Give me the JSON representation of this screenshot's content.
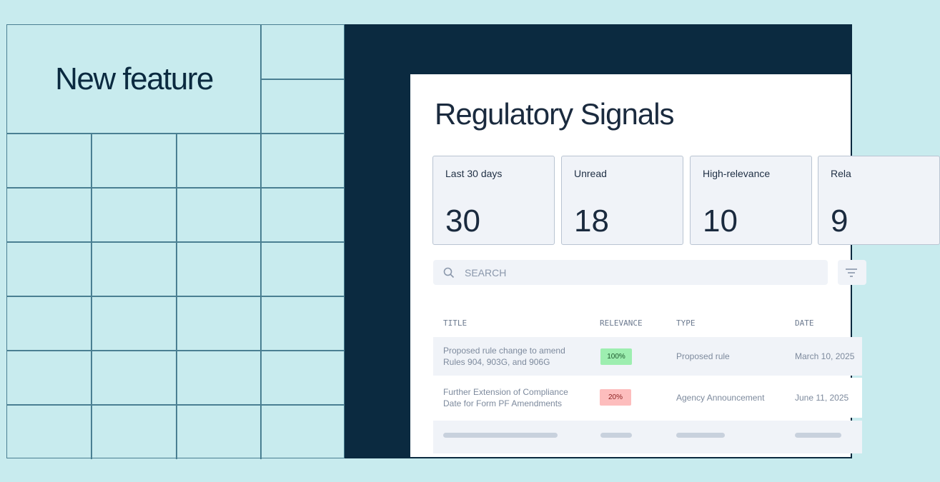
{
  "headline": "New feature",
  "app": {
    "title": "Regulatory Signals",
    "stats": [
      {
        "label": "Last 30 days",
        "value": "30"
      },
      {
        "label": "Unread",
        "value": "18"
      },
      {
        "label": "High-relevance",
        "value": "10"
      },
      {
        "label": "Rela",
        "value": "9"
      }
    ],
    "search": {
      "placeholder": "SEARCH"
    },
    "table": {
      "headers": [
        "TITLE",
        "RELEVANCE",
        "TYPE",
        "DATE"
      ],
      "rows": [
        {
          "title": "Proposed rule change to amend Rules 904, 903G, and 906G",
          "relevance": "100%",
          "relevance_color": "#9deeb0",
          "type": "Proposed rule",
          "date": "March 10, 2025"
        },
        {
          "title": "Further Extension of Compliance Date for Form PF Amendments",
          "relevance": "20%",
          "relevance_color": "#fdbdbd",
          "type": "Agency Announcement",
          "date": "June 11, 2025"
        }
      ]
    }
  },
  "colors": {
    "background": "#c8ebee",
    "dark_panel": "#0b2a40",
    "grid_line": "#4a7f92"
  }
}
